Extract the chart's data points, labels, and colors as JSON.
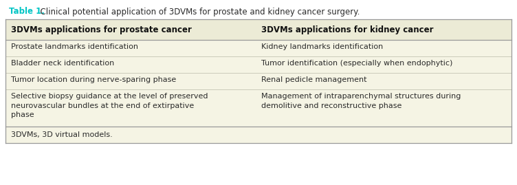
{
  "title_label": "Table 1.",
  "title_rest": "  Clinical potential application of 3DVMs for prostate and kidney cancer surgery.",
  "title_label_color": "#00C4C4",
  "col1_header": "3DVMs applications for prostate cancer",
  "col2_header": "3DVMs applications for kidney cancer",
  "rows": [
    [
      "Prostate landmarks identification",
      "Kidney landmarks identification"
    ],
    [
      "Bladder neck identification",
      "Tumor identification (especially when endophytic)"
    ],
    [
      "Tumor location during nerve-sparing phase",
      "Renal pedicle management"
    ],
    [
      "Selective biopsy guidance at the level of preserved\nneurovascular bundles at the end of extirpative\nphase",
      "Management of intraparenchymal structures during\ndemolitive and reconstructive phase"
    ]
  ],
  "footnote": "3DVMs, 3D virtual models.",
  "bg_color": "#F5F4E4",
  "header_bg_color": "#ECEBD6",
  "border_color": "#999999",
  "divider_color": "#BBBBAA",
  "text_color": "#2A2A2A",
  "header_text_color": "#111111",
  "font_size": 8.0,
  "header_font_size": 8.5
}
